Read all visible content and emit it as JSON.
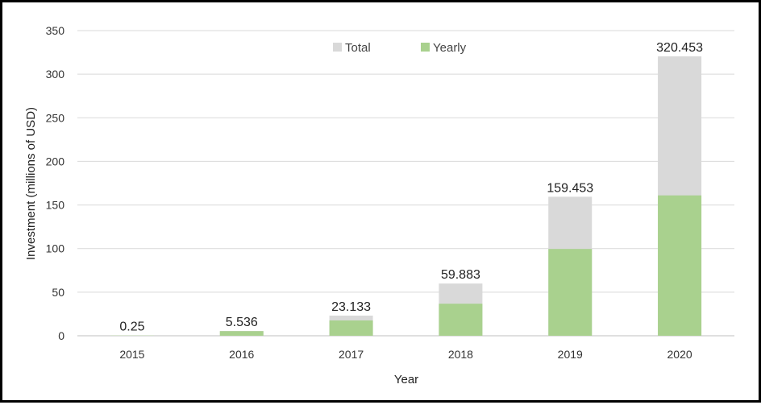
{
  "chart_data": {
    "type": "bar",
    "stacked": true,
    "categories": [
      "2015",
      "2016",
      "2017",
      "2018",
      "2019",
      "2020"
    ],
    "series": [
      {
        "name": "Yearly",
        "values": [
          0.25,
          5.286,
          17.597,
          36.75,
          99.57,
          161.0
        ]
      },
      {
        "name": "Total",
        "values": [
          0.25,
          5.536,
          23.133,
          59.883,
          159.453,
          320.453
        ]
      }
    ],
    "data_labels": [
      "0.25",
      "5.536",
      "23.133",
      "59.883",
      "159.453",
      "320.453"
    ],
    "title": "",
    "xlabel": "Year",
    "ylabel": "Investment (millions of USD)",
    "ylim": [
      0,
      350
    ],
    "yticks": [
      0,
      50,
      100,
      150,
      200,
      250,
      300,
      350
    ],
    "grid": true,
    "legend_position": "top-center",
    "colors": {
      "Total": "#d9d9d9",
      "Yearly": "#a9d18e"
    }
  }
}
